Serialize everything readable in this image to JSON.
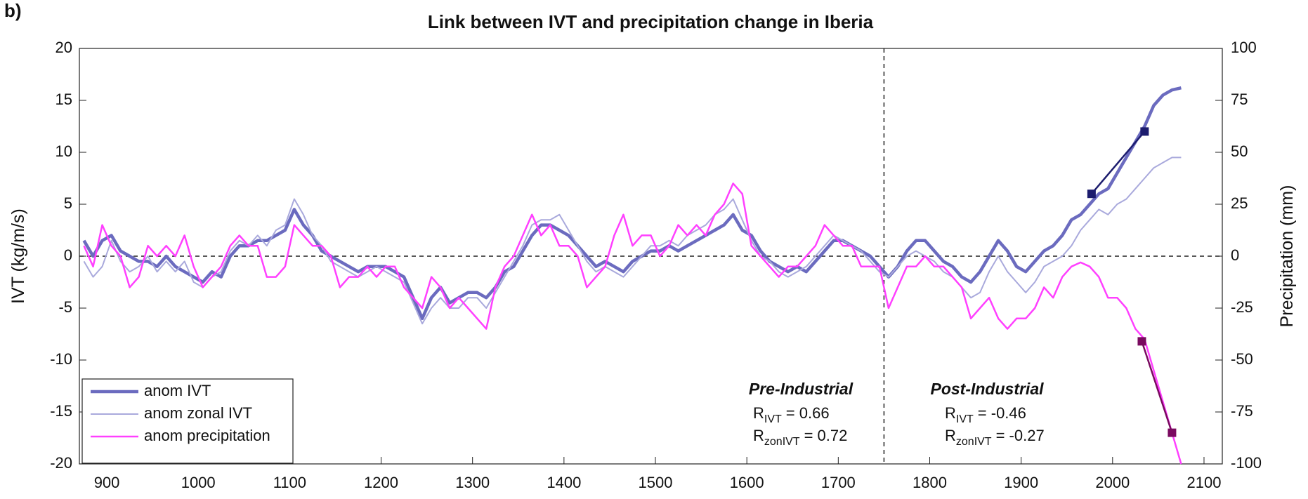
{
  "panel_label": "b)",
  "chart_data": {
    "type": "line",
    "title": "Link between IVT and precipitation change in Iberia",
    "y_label": "IVT (kg/m/s)",
    "y2_label": "Precipitation (mm)",
    "xlim": [
      870,
      2120
    ],
    "xticks": [
      900,
      1000,
      1100,
      1200,
      1300,
      1400,
      1500,
      1600,
      1700,
      1800,
      1900,
      2000,
      2100
    ],
    "ylim": [
      -20,
      20
    ],
    "yticks": [
      20,
      15,
      10,
      5,
      0,
      -5,
      -10,
      -15,
      -20
    ],
    "y2lim": [
      -100,
      100
    ],
    "y2ticks": [
      100,
      75,
      50,
      25,
      0,
      -25,
      -50,
      -75,
      -100
    ],
    "reference_y": 0,
    "divider_x": 1750,
    "legend": "lower left",
    "x": [
      875,
      885,
      895,
      905,
      915,
      925,
      935,
      945,
      955,
      965,
      975,
      985,
      995,
      1005,
      1015,
      1025,
      1035,
      1045,
      1055,
      1065,
      1075,
      1085,
      1095,
      1105,
      1115,
      1125,
      1135,
      1145,
      1155,
      1165,
      1175,
      1185,
      1195,
      1205,
      1215,
      1225,
      1235,
      1245,
      1255,
      1265,
      1275,
      1285,
      1295,
      1305,
      1315,
      1325,
      1335,
      1345,
      1355,
      1365,
      1375,
      1385,
      1395,
      1405,
      1415,
      1425,
      1435,
      1445,
      1455,
      1465,
      1475,
      1485,
      1495,
      1505,
      1515,
      1525,
      1535,
      1545,
      1555,
      1565,
      1575,
      1585,
      1595,
      1605,
      1615,
      1625,
      1635,
      1645,
      1655,
      1665,
      1675,
      1685,
      1695,
      1705,
      1715,
      1725,
      1735,
      1745,
      1755,
      1765,
      1775,
      1785,
      1795,
      1805,
      1815,
      1825,
      1835,
      1845,
      1855,
      1865,
      1875,
      1885,
      1895,
      1905,
      1915,
      1925,
      1935,
      1945,
      1955,
      1965,
      1975,
      1985,
      1995,
      2005,
      2015,
      2025,
      2035,
      2045,
      2055,
      2065,
      2075
    ],
    "series": [
      {
        "name": "anom IVT",
        "color": "#6b6bbf",
        "width": 4.5,
        "axis": "y",
        "values": [
          1.5,
          0,
          1.5,
          2,
          0.5,
          0,
          -0.5,
          -0.5,
          -1,
          0,
          -1,
          -1.5,
          -2,
          -2.5,
          -1.5,
          -2,
          0,
          1,
          1,
          1.5,
          1.5,
          2,
          2.5,
          4.5,
          3,
          2,
          0.5,
          0,
          -0.5,
          -1,
          -1.5,
          -1,
          -1,
          -1,
          -1.5,
          -2,
          -4,
          -6,
          -4,
          -3,
          -4.5,
          -4,
          -3.5,
          -3.5,
          -4,
          -3,
          -1.5,
          -1,
          0.5,
          2,
          3,
          3,
          2.5,
          2,
          1,
          0,
          -1,
          -0.5,
          -1,
          -1.5,
          -0.5,
          0,
          0.5,
          0.5,
          1,
          0.5,
          1,
          1.5,
          2,
          2.5,
          3,
          4,
          2.5,
          2,
          0.5,
          -0.5,
          -1,
          -1.5,
          -1,
          -1.5,
          -0.5,
          0.5,
          1.5,
          1.5,
          1,
          0.5,
          0,
          -1,
          -2,
          -1,
          0.5,
          1.5,
          1.5,
          0.5,
          -0.5,
          -1,
          -2,
          -2.5,
          -1.5,
          0,
          1.5,
          0.5,
          -1,
          -1.5,
          -0.5,
          0.5,
          1,
          2,
          3.5,
          4,
          5,
          6,
          6.5,
          8,
          9.5,
          11,
          12.5,
          14.5,
          15.5,
          16,
          16.2
        ]
      },
      {
        "name": "anom zonal IVT",
        "color": "#a9a9dc",
        "width": 2,
        "axis": "y",
        "values": [
          -0.5,
          -2,
          -1,
          1.5,
          -0.5,
          -1.5,
          -1,
          0,
          -1.5,
          -0.5,
          -1.5,
          -0.5,
          -2.5,
          -3,
          -2,
          -1.5,
          0.5,
          1.5,
          1,
          2,
          1,
          2.5,
          3,
          5.5,
          4,
          2,
          1,
          -0.5,
          -1,
          -1.5,
          -2,
          -1.5,
          -1,
          -1.5,
          -2,
          -2.5,
          -4.5,
          -6.5,
          -5,
          -4,
          -5,
          -5,
          -4,
          -4,
          -5,
          -3.5,
          -2,
          -0.5,
          1,
          3,
          3.5,
          3.5,
          4,
          2.5,
          1,
          -0.5,
          -1.5,
          -1,
          -1.5,
          -2,
          -1,
          0,
          1,
          1,
          1.5,
          1,
          2,
          2.5,
          3,
          4,
          4.5,
          5.5,
          3.5,
          1.5,
          0,
          -0.5,
          -1.5,
          -2,
          -1.5,
          -1,
          0,
          1,
          2,
          1.5,
          1,
          0.5,
          -0.5,
          -1.5,
          -2,
          -1,
          0,
          0.5,
          0,
          -0.5,
          -1.5,
          -2,
          -3,
          -4,
          -3.5,
          -1.5,
          0,
          -1.5,
          -2.5,
          -3.5,
          -2.5,
          -1,
          -0.5,
          0,
          1,
          2.5,
          3.5,
          4.5,
          4,
          5,
          5.5,
          6.5,
          7.5,
          8.5,
          9,
          9.5,
          9.5
        ]
      },
      {
        "name": "anom precipitation",
        "color": "#ff40ff",
        "width": 2.5,
        "axis": "y2",
        "values": [
          5,
          -5,
          15,
          5,
          0,
          -15,
          -10,
          5,
          0,
          5,
          0,
          10,
          -5,
          -15,
          -10,
          -5,
          5,
          10,
          5,
          5,
          -10,
          -10,
          -5,
          15,
          10,
          5,
          5,
          0,
          -15,
          -10,
          -10,
          -5,
          -10,
          -5,
          -5,
          -15,
          -20,
          -25,
          -10,
          -15,
          -25,
          -20,
          -25,
          -30,
          -35,
          -15,
          -5,
          0,
          10,
          20,
          10,
          15,
          5,
          5,
          0,
          -15,
          -10,
          -5,
          10,
          20,
          5,
          10,
          10,
          0,
          5,
          15,
          10,
          15,
          10,
          20,
          25,
          35,
          30,
          5,
          0,
          -5,
          -10,
          -5,
          -5,
          0,
          5,
          15,
          10,
          5,
          5,
          -5,
          -5,
          -5,
          -25,
          -15,
          -5,
          -5,
          0,
          -5,
          -5,
          -10,
          -15,
          -30,
          -25,
          -20,
          -30,
          -35,
          -30,
          -30,
          -25,
          -15,
          -20,
          -10,
          -5,
          -3,
          -5,
          -10,
          -20,
          -20,
          -25,
          -35,
          -40,
          -55,
          -70,
          -85,
          -100
        ]
      }
    ],
    "trends": [
      {
        "color": "#1c1c6e",
        "axis": "y",
        "x": [
          1977,
          2035
        ],
        "values": [
          6,
          12
        ]
      },
      {
        "color": "#7a0a60",
        "axis": "y2",
        "x": [
          2032,
          2065
        ],
        "values": [
          -41,
          -85
        ]
      }
    ],
    "annotations": [
      {
        "heading": "Pre-Industrial",
        "stats": [
          {
            "symbol": "R",
            "subscript": "IVT",
            "text": "= 0.66"
          },
          {
            "symbol": "R",
            "subscript": "zonIVT",
            "text": "= 0.72"
          }
        ]
      },
      {
        "heading": "Post-Industrial",
        "stats": [
          {
            "symbol": "R",
            "subscript": "IVT",
            "text": "= -0.46"
          },
          {
            "symbol": "R",
            "subscript": "zonIVT",
            "text": "= -0.27"
          }
        ]
      }
    ]
  }
}
